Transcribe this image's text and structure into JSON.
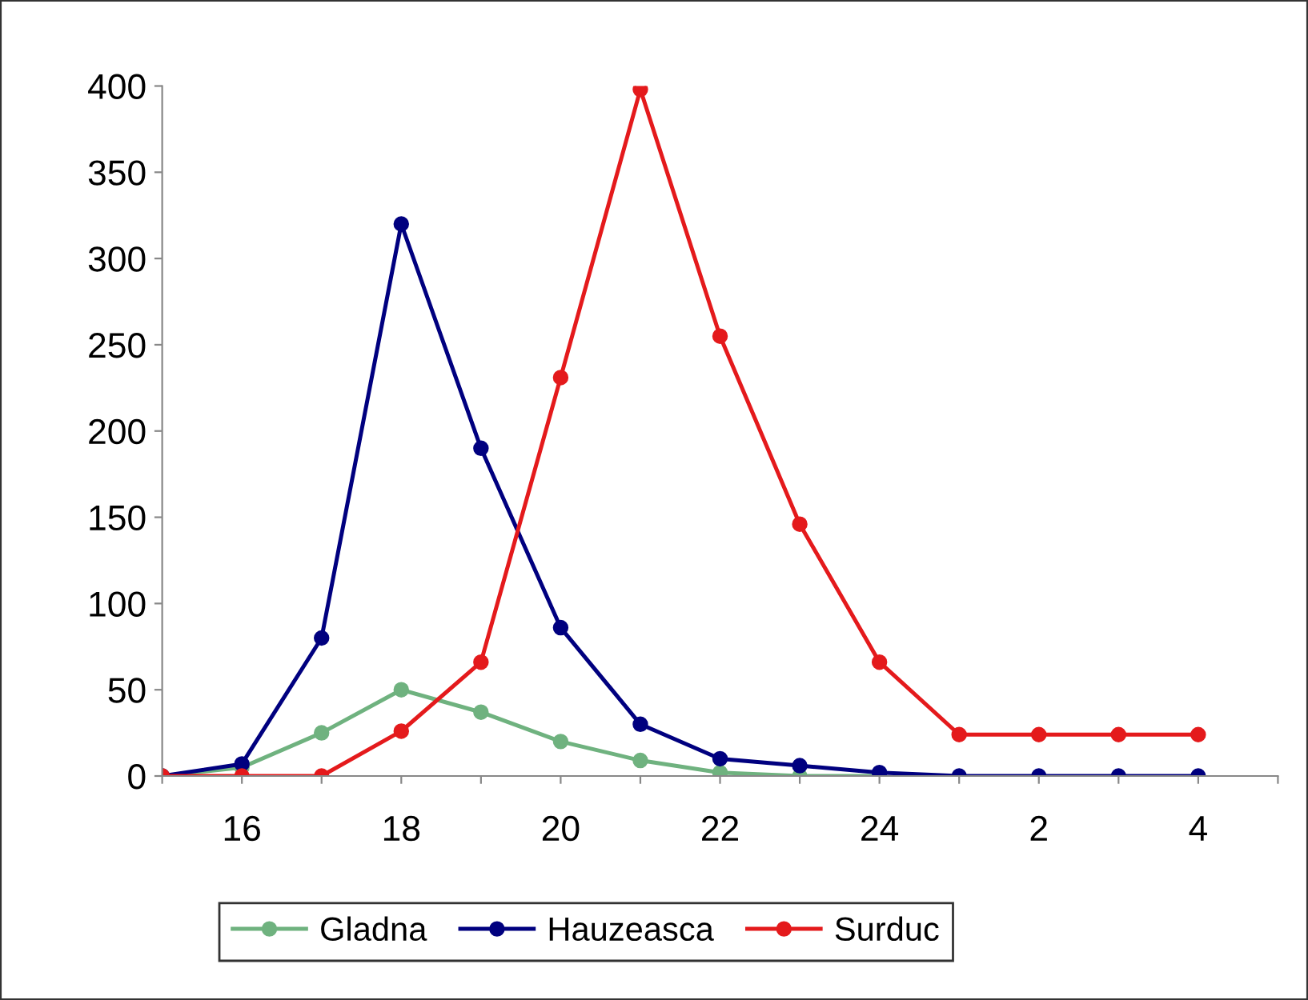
{
  "chart_data": {
    "type": "line",
    "categories": [
      null,
      "16",
      null,
      "18",
      null,
      "20",
      null,
      "22",
      null,
      "24",
      null,
      "2",
      null,
      "4"
    ],
    "series": [
      {
        "name": "Gladna",
        "color": "#6fb27f",
        "values": [
          0,
          5,
          25,
          50,
          37,
          20,
          9,
          2,
          0,
          0,
          null,
          null,
          null,
          null
        ]
      },
      {
        "name": "Hauzeasca",
        "color": "#00007f",
        "values": [
          0,
          7,
          80,
          320,
          190,
          86,
          30,
          10,
          6,
          2,
          0,
          0,
          0,
          0
        ]
      },
      {
        "name": "Surduc",
        "color": "#e41a1c",
        "values": [
          0,
          0,
          0,
          26,
          66,
          231,
          398,
          255,
          146,
          66,
          24,
          24,
          24,
          24
        ]
      }
    ],
    "ylim": [
      0,
      400
    ],
    "yticks": [
      0,
      50,
      100,
      150,
      200,
      250,
      300,
      350,
      400
    ],
    "grid": false,
    "legend": "bottom",
    "marker": "circle",
    "line_style": "solid"
  }
}
